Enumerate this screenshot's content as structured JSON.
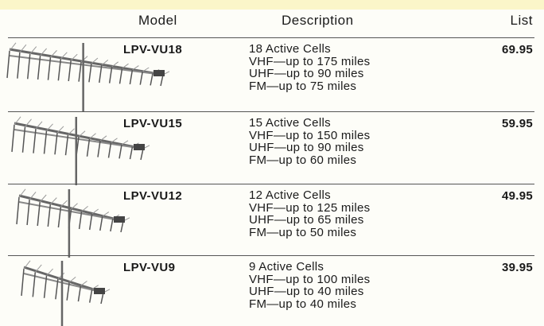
{
  "table": {
    "headers": [
      "Model",
      "Description",
      "List"
    ],
    "rows": [
      {
        "model": "LPV-VU18",
        "description": [
          "18 Active Cells",
          "VHF—up to 175 miles",
          "UHF—up to 90 miles",
          "FM—up to 75 miles"
        ],
        "list": "69.95"
      },
      {
        "model": "LPV-VU15",
        "description": [
          "15 Active Cells",
          "VHF—up to 150 miles",
          "UHF—up to 90 miles",
          "FM—up to 60 miles"
        ],
        "list": "59.95"
      },
      {
        "model": "LPV-VU12",
        "description": [
          "12 Active Cells",
          "VHF—up to 125 miles",
          "UHF—up to 65 miles",
          "FM—up to 50 miles"
        ],
        "list": "49.95"
      },
      {
        "model": "LPV-VU9",
        "description": [
          "9 Active Cells",
          "VHF—up to 100 miles",
          "UHF—up to 40 miles",
          "FM—up to 40 miles"
        ],
        "list": "39.95"
      }
    ]
  }
}
